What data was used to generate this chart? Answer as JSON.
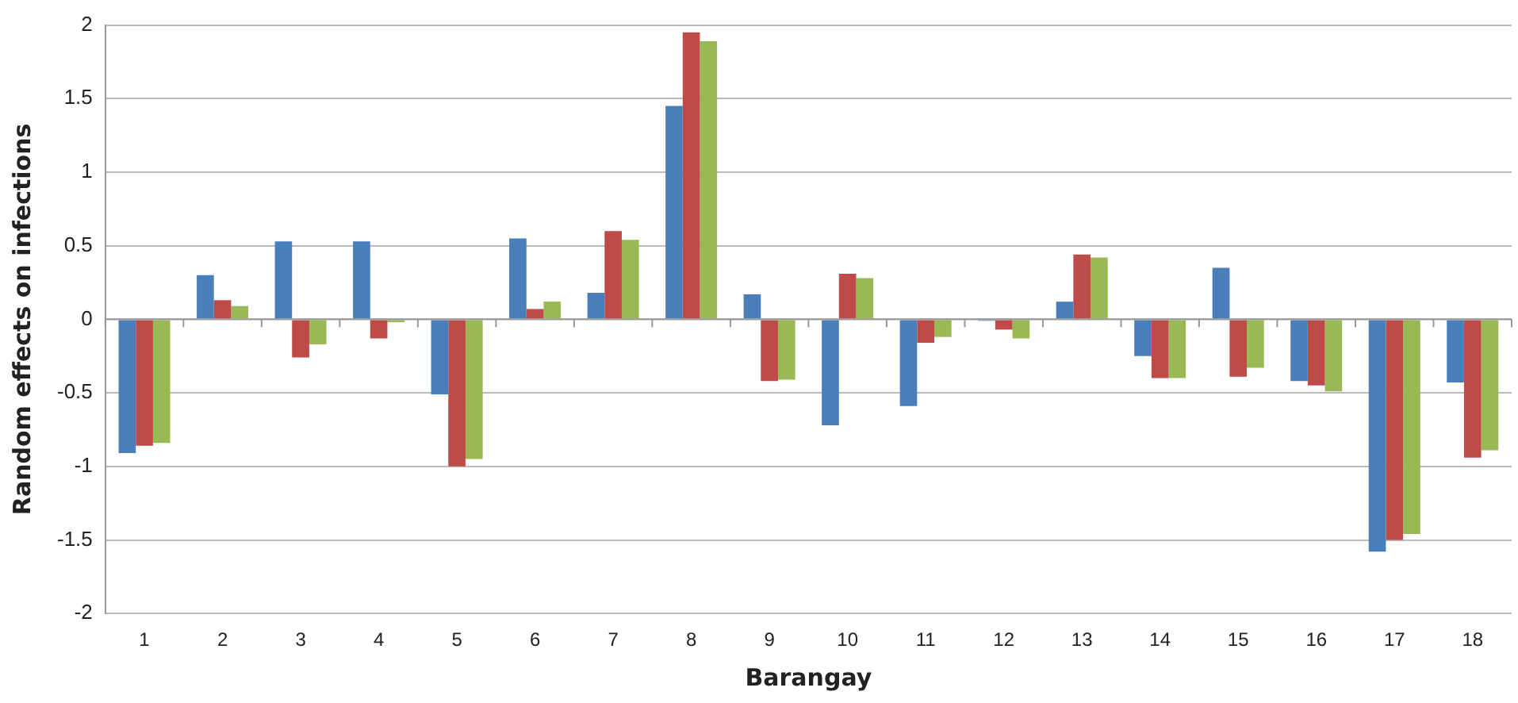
{
  "chart_data": {
    "type": "bar",
    "xlabel": "Barangay",
    "ylabel": "Random effects on infections",
    "categories": [
      "1",
      "2",
      "3",
      "4",
      "5",
      "6",
      "7",
      "8",
      "9",
      "10",
      "11",
      "12",
      "13",
      "14",
      "15",
      "16",
      "17",
      "18"
    ],
    "series": [
      {
        "color": "#4a7ebb",
        "values": [
          -0.91,
          0.3,
          0.53,
          0.53,
          -0.51,
          0.55,
          0.18,
          1.45,
          0.17,
          -0.72,
          -0.59,
          -0.01,
          0.12,
          -0.25,
          0.35,
          -0.42,
          -1.58,
          -0.43
        ]
      },
      {
        "color": "#be4b48",
        "values": [
          -0.86,
          0.13,
          -0.26,
          -0.13,
          -1.0,
          0.07,
          0.6,
          1.95,
          -0.42,
          0.31,
          -0.16,
          -0.07,
          0.44,
          -0.4,
          -0.39,
          -0.45,
          -1.5,
          -0.94
        ]
      },
      {
        "color": "#98b954",
        "values": [
          -0.84,
          0.09,
          -0.17,
          -0.02,
          -0.95,
          0.12,
          0.54,
          1.89,
          -0.41,
          0.28,
          -0.12,
          -0.13,
          0.42,
          -0.4,
          -0.33,
          -0.49,
          -1.46,
          -0.89
        ]
      }
    ],
    "ylim": [
      -2,
      2
    ],
    "yticks": [
      {
        "value": -2,
        "label": "-2"
      },
      {
        "value": -1.5,
        "label": "-1.5"
      },
      {
        "value": -1,
        "label": "-1"
      },
      {
        "value": -0.5,
        "label": "-0.5"
      },
      0,
      {
        "value": 0.5,
        "label": "0.5"
      },
      1,
      {
        "value": 1.5,
        "label": "1.5"
      },
      2
    ],
    "grid": "y",
    "legend": false
  }
}
